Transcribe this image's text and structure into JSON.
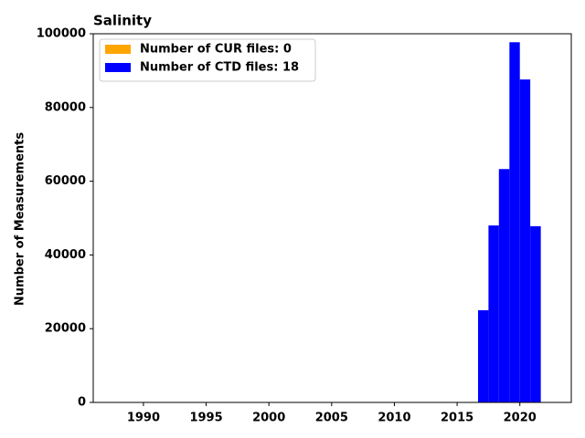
{
  "chart_data": {
    "type": "histogram",
    "title": "Salinity",
    "y_label": "Number of Measurements",
    "bins": [
      2016.67,
      2017.5,
      2018.33,
      2019.17,
      2020,
      2020.83,
      2021.67
    ],
    "stacked": true,
    "series": [
      {
        "name": "Number of CUR files: 0",
        "color": "#ffa500",
        "values": [
          0,
          0,
          0,
          0,
          0,
          0
        ]
      },
      {
        "name": "Number of CTD files: 18",
        "color": "#0000ff",
        "values": [
          25000,
          48000,
          63300,
          97700,
          87600,
          47800
        ]
      }
    ],
    "xlim": [
      1986,
      2024.1
    ],
    "xticks": [
      1990,
      1995,
      2000,
      2005,
      2010,
      2015,
      2020
    ],
    "ylim": [
      0,
      100000
    ],
    "yticks": [
      0,
      20000,
      40000,
      60000,
      80000,
      100000
    ],
    "legend": "upper left"
  }
}
